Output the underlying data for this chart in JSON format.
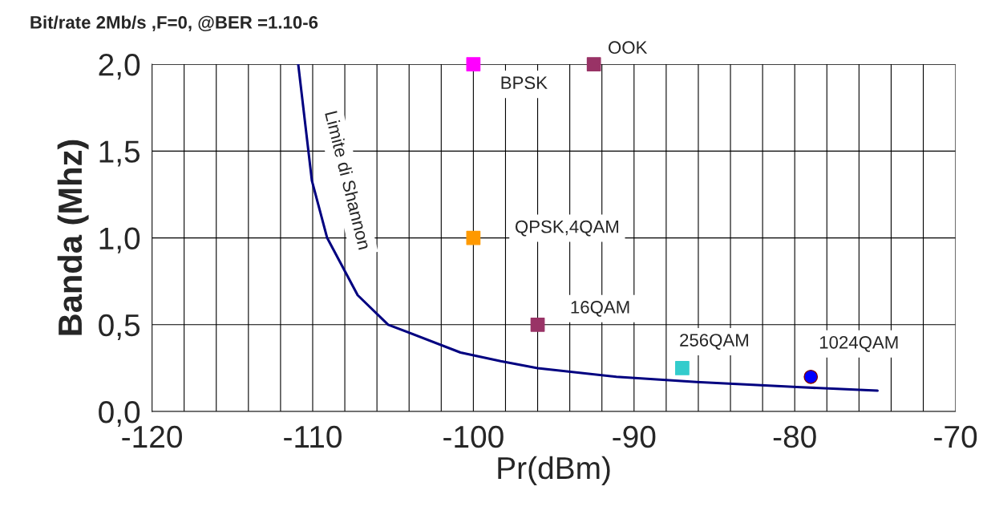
{
  "chart_data": {
    "type": "scatter",
    "title": "Bit/rate 2Mb/s ,F=0, @BER =1.10-6",
    "xlabel": "Pr(dBm)",
    "ylabel": "Banda (Mhz)",
    "xlim": [
      -120,
      -70
    ],
    "ylim": [
      0,
      2
    ],
    "xticks": [
      -120,
      {
        "value": -118,
        "label": null
      },
      {
        "value": -116,
        "label": null
      },
      {
        "value": -114,
        "label": null
      },
      {
        "value": -112,
        "label": null
      },
      -110,
      {
        "value": -108,
        "label": null
      },
      {
        "value": -106,
        "label": null
      },
      {
        "value": -104,
        "label": null
      },
      {
        "value": -102,
        "label": null
      },
      -100,
      {
        "value": -98,
        "label": null
      },
      {
        "value": -96,
        "label": null
      },
      {
        "value": -94,
        "label": null
      },
      {
        "value": -92,
        "label": null
      },
      -90,
      {
        "value": -88,
        "label": null
      },
      {
        "value": -86,
        "label": null
      },
      {
        "value": -84,
        "label": null
      },
      {
        "value": -82,
        "label": null
      },
      -80,
      {
        "value": -78,
        "label": null
      },
      {
        "value": -76,
        "label": null
      },
      {
        "value": -74,
        "label": null
      },
      {
        "value": -72,
        "label": null
      },
      -70
    ],
    "yticks": [
      {
        "value": 0,
        "label": "0,0"
      },
      {
        "value": 0.5,
        "label": "0,5"
      },
      {
        "value": 1,
        "label": "1,0"
      },
      {
        "value": 1.5,
        "label": "1,5"
      },
      {
        "value": 2,
        "label": "2,0"
      }
    ],
    "grid": true,
    "legend": false,
    "series": [
      {
        "name": "Limite di Shannon",
        "type": "line",
        "color": "#000080",
        "marker": "none",
        "x": [
          -110.9,
          -110.05,
          -109.1,
          -107.2,
          -105.3,
          -100.8,
          -98.3,
          -96,
          -91.1,
          -86.1,
          -79.6,
          -74.85
        ],
        "values": [
          2.0,
          1.33,
          1.0,
          0.67,
          0.5,
          0.34,
          0.29,
          0.25,
          0.2,
          0.17,
          0.14,
          0.12
        ]
      },
      {
        "name": "BPSK",
        "color": "#ff00ff",
        "marker": "square",
        "x": [
          -100
        ],
        "values": [
          2.0
        ]
      },
      {
        "name": "OOK",
        "color": "#993366",
        "marker": "square",
        "x": [
          -92.5
        ],
        "values": [
          2.0
        ]
      },
      {
        "name": "QPSK,4QAM",
        "color": "#ff9900",
        "marker": "square",
        "x": [
          -100
        ],
        "values": [
          1.0
        ]
      },
      {
        "name": "16QAM",
        "color": "#993366",
        "marker": "square",
        "x": [
          -96
        ],
        "values": [
          0.5
        ]
      },
      {
        "name": "256QAM",
        "color": "#33cccc",
        "marker": "square",
        "x": [
          -87
        ],
        "values": [
          0.25
        ]
      },
      {
        "name": "1024QAM",
        "color": "#0000ff",
        "marker": "circle",
        "x": [
          -79
        ],
        "values": [
          0.2
        ]
      }
    ]
  }
}
